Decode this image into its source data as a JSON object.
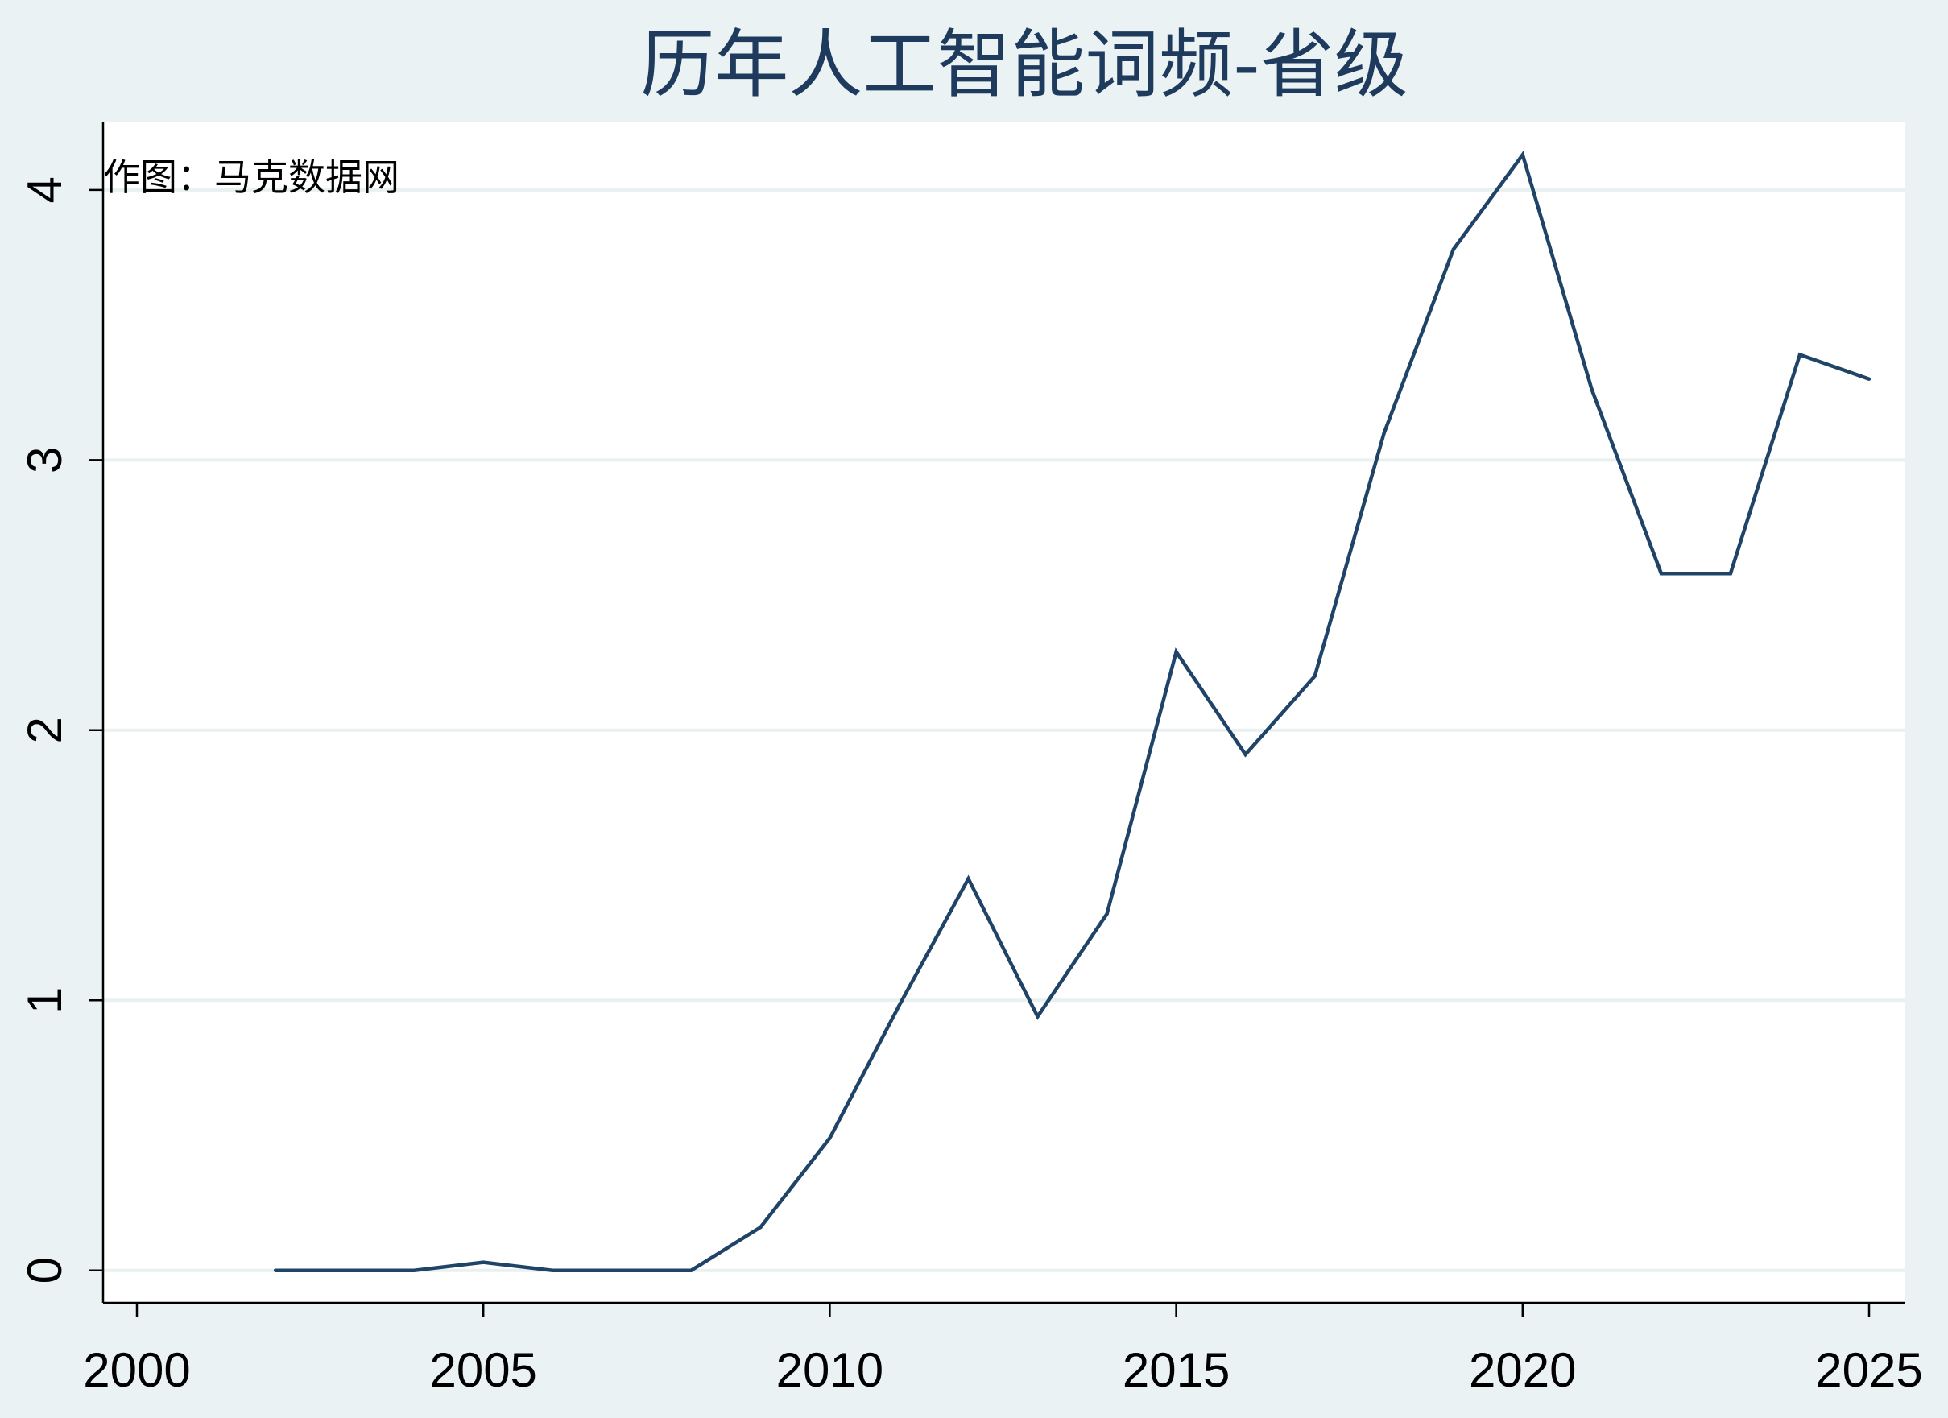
{
  "chart_data": {
    "type": "line",
    "title": "历年人工智能词频-省级",
    "annotation": "作图：马克数据网",
    "xlabel": "",
    "ylabel": "",
    "xlim": [
      2000,
      2025
    ],
    "ylim": [
      -0.12,
      4.25
    ],
    "x_ticks": [
      "2000",
      "2005",
      "2010",
      "2015",
      "2020",
      "2025"
    ],
    "y_ticks": [
      "0",
      "1",
      "2",
      "3",
      "4"
    ],
    "grid": "horizontal",
    "series": [
      {
        "x": [
          2002,
          2003,
          2004,
          2005,
          2006,
          2007,
          2008,
          2009,
          2010,
          2011,
          2012,
          2013,
          2014,
          2015,
          2016,
          2017,
          2018,
          2019,
          2020,
          2021,
          2022,
          2023,
          2024,
          2025
        ],
        "values": [
          0,
          0,
          0,
          0.03,
          0,
          0,
          0,
          0.16,
          0.49,
          0.98,
          1.45,
          0.94,
          1.32,
          2.29,
          1.91,
          2.2,
          3.1,
          3.78,
          4.13,
          3.26,
          2.58,
          2.58,
          3.39,
          3.3
        ]
      }
    ],
    "colors": {
      "line": "#1f4468",
      "plot_bg": "#ffffff",
      "page_bg": "#eaf2f3",
      "grid": "#e8f0f1",
      "title": "#1e3a5c"
    }
  }
}
